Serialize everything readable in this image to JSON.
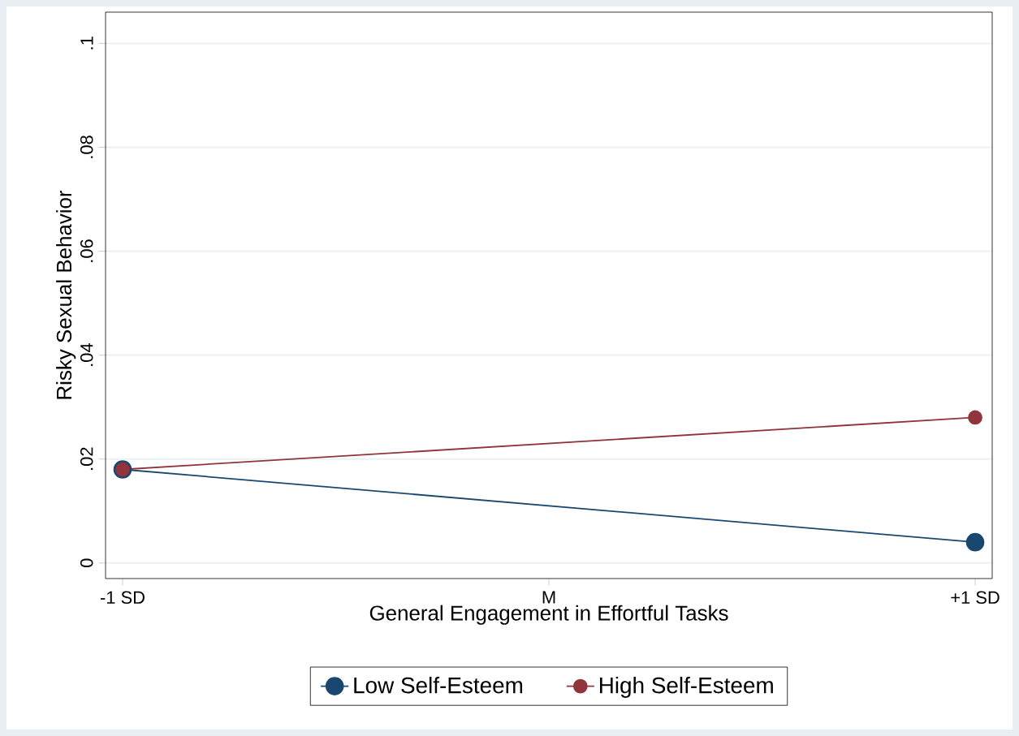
{
  "chart_data": {
    "type": "line",
    "xlabel": "General Engagement in Effortful Tasks",
    "ylabel": "Risky Sexual Behavior",
    "x": [
      -1,
      1
    ],
    "series": [
      {
        "name": "Low Self-Esteem",
        "color": "#1a476f",
        "values": [
          0.018,
          0.004
        ]
      },
      {
        "name": "High Self-Esteem",
        "color": "#90353b",
        "values": [
          0.018,
          0.028
        ]
      }
    ],
    "xlim": [
      -1.04,
      1.04
    ],
    "ylim": [
      -0.003,
      0.106
    ],
    "xticks": [
      {
        "value": -1,
        "label": "-1 SD"
      },
      {
        "value": 0,
        "label": "M"
      },
      {
        "value": 1,
        "label": "+1 SD"
      }
    ],
    "yticks": [
      {
        "value": 0,
        "label": "0"
      },
      {
        "value": 0.02,
        "label": ".02"
      },
      {
        "value": 0.04,
        "label": ".04"
      },
      {
        "value": 0.06,
        "label": ".06"
      },
      {
        "value": 0.08,
        "label": ".08"
      },
      {
        "value": 0.1,
        "label": ".1"
      }
    ],
    "grid": "y",
    "legend": "bottom",
    "marker": "circle",
    "line_style": "solid"
  }
}
